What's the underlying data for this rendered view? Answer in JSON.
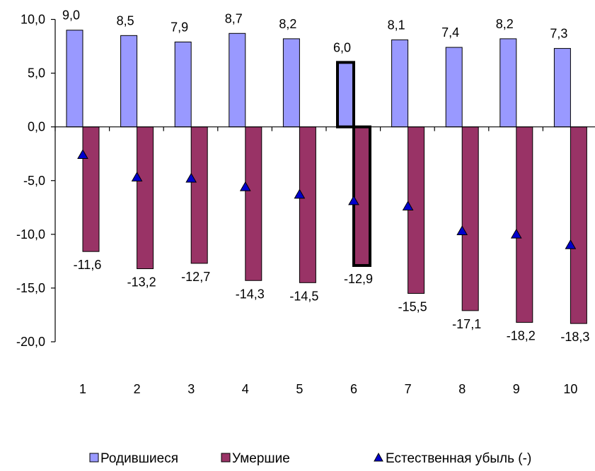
{
  "chart_data": {
    "type": "bar",
    "categories": [
      "1",
      "2",
      "3",
      "4",
      "5",
      "6",
      "7",
      "8",
      "9",
      "10"
    ],
    "series": [
      {
        "name": "Родившиеся",
        "kind": "bar",
        "color": "#9999ff",
        "values": [
          9.0,
          8.5,
          7.9,
          8.7,
          8.2,
          6.0,
          8.1,
          7.4,
          8.2,
          7.3
        ],
        "labels": [
          "9,0",
          "8,5",
          "7,9",
          "8,7",
          "8,2",
          "6,0",
          "8,1",
          "7,4",
          "8,2",
          "7,3"
        ]
      },
      {
        "name": "Умершие",
        "kind": "bar",
        "color": "#993366",
        "values": [
          -11.6,
          -13.2,
          -12.7,
          -14.3,
          -14.5,
          -12.9,
          -15.5,
          -17.1,
          -18.2,
          -18.3
        ],
        "labels": [
          "-11,6",
          "-13,2",
          "-12,7",
          "-14,3",
          "-14,5",
          "-12,9",
          "-15,5",
          "-17,1",
          "-18,2",
          "-18,3"
        ]
      },
      {
        "name": "Естественная убыль (-)",
        "kind": "marker",
        "color": "#0000cc",
        "values": [
          -2.6,
          -4.7,
          -4.8,
          -5.6,
          -6.3,
          -6.9,
          -7.4,
          -9.7,
          -10.0,
          -11.0
        ]
      }
    ],
    "highlighted_category": "6",
    "ylim": [
      -20,
      10
    ],
    "yticks": [
      10,
      5,
      0,
      -5,
      -10,
      -15,
      -20
    ],
    "ytick_labels": [
      "10,0",
      "5,0",
      "0,0",
      "-5,0",
      "-10,0",
      "-15,0",
      "-20,0"
    ],
    "title": "",
    "xlabel": "",
    "ylabel": "",
    "grid": false,
    "legend_position": "bottom"
  }
}
